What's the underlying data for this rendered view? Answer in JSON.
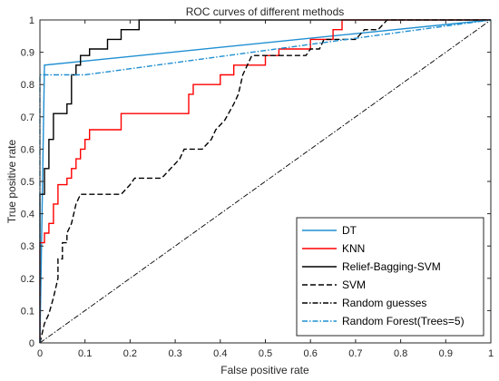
{
  "chart_data": {
    "type": "line",
    "title": "ROC curves of different methods",
    "xlabel": "False positive rate",
    "ylabel": "True positive rate",
    "xlim": [
      0,
      1
    ],
    "ylim": [
      0,
      1
    ],
    "grid": false,
    "legend_position": "bottom-right",
    "xticks": [
      "0",
      "0.1",
      "0.2",
      "0.3",
      "0.4",
      "0.5",
      "0.6",
      "0.7",
      "0.8",
      "0.9",
      "1"
    ],
    "yticks": [
      "0",
      "0.1",
      "0.2",
      "0.3",
      "0.4",
      "0.5",
      "0.6",
      "0.7",
      "0.8",
      "0.9",
      "1"
    ],
    "series": [
      {
        "name": "DT",
        "color": "#1f8fd1",
        "dash": "solid",
        "points": [
          [
            0,
            0
          ],
          [
            0.01,
            0.86
          ],
          [
            1,
            1
          ]
        ]
      },
      {
        "name": "KNN",
        "color": "#ff0000",
        "dash": "solid",
        "points": [
          [
            0,
            0
          ],
          [
            0,
            0.31
          ],
          [
            0.01,
            0.31
          ],
          [
            0.01,
            0.34
          ],
          [
            0.02,
            0.34
          ],
          [
            0.02,
            0.37
          ],
          [
            0.03,
            0.37
          ],
          [
            0.03,
            0.43
          ],
          [
            0.04,
            0.43
          ],
          [
            0.04,
            0.49
          ],
          [
            0.06,
            0.49
          ],
          [
            0.06,
            0.51
          ],
          [
            0.07,
            0.51
          ],
          [
            0.07,
            0.54
          ],
          [
            0.08,
            0.54
          ],
          [
            0.08,
            0.57
          ],
          [
            0.09,
            0.57
          ],
          [
            0.09,
            0.6
          ],
          [
            0.1,
            0.6
          ],
          [
            0.1,
            0.63
          ],
          [
            0.11,
            0.63
          ],
          [
            0.11,
            0.66
          ],
          [
            0.18,
            0.66
          ],
          [
            0.18,
            0.71
          ],
          [
            0.22,
            0.71
          ],
          [
            0.22,
            0.71
          ],
          [
            0.33,
            0.71
          ],
          [
            0.33,
            0.77
          ],
          [
            0.34,
            0.77
          ],
          [
            0.34,
            0.8
          ],
          [
            0.4,
            0.8
          ],
          [
            0.4,
            0.83
          ],
          [
            0.43,
            0.83
          ],
          [
            0.43,
            0.86
          ],
          [
            0.5,
            0.86
          ],
          [
            0.5,
            0.89
          ],
          [
            0.53,
            0.89
          ],
          [
            0.53,
            0.91
          ],
          [
            0.6,
            0.91
          ],
          [
            0.6,
            0.94
          ],
          [
            0.65,
            0.94
          ],
          [
            0.65,
            0.97
          ],
          [
            0.67,
            0.97
          ],
          [
            0.67,
            1.0
          ],
          [
            1,
            1
          ]
        ]
      },
      {
        "name": "Relief-Bagging-SVM",
        "color": "#000000",
        "dash": "solid",
        "points": [
          [
            0,
            0
          ],
          [
            0,
            0.46
          ],
          [
            0.01,
            0.46
          ],
          [
            0.01,
            0.54
          ],
          [
            0.02,
            0.54
          ],
          [
            0.02,
            0.63
          ],
          [
            0.03,
            0.63
          ],
          [
            0.03,
            0.71
          ],
          [
            0.06,
            0.71
          ],
          [
            0.06,
            0.74
          ],
          [
            0.07,
            0.74
          ],
          [
            0.07,
            0.83
          ],
          [
            0.08,
            0.83
          ],
          [
            0.08,
            0.86
          ],
          [
            0.09,
            0.86
          ],
          [
            0.09,
            0.89
          ],
          [
            0.11,
            0.89
          ],
          [
            0.11,
            0.91
          ],
          [
            0.15,
            0.91
          ],
          [
            0.15,
            0.94
          ],
          [
            0.18,
            0.94
          ],
          [
            0.18,
            0.97
          ],
          [
            0.22,
            0.97
          ],
          [
            0.22,
            1.0
          ],
          [
            1,
            1
          ]
        ]
      },
      {
        "name": "SVM",
        "color": "#000000",
        "dash": "dashed",
        "points": [
          [
            0,
            0
          ],
          [
            0.01,
            0.06
          ],
          [
            0.02,
            0.09
          ],
          [
            0.03,
            0.14
          ],
          [
            0.04,
            0.2
          ],
          [
            0.04,
            0.26
          ],
          [
            0.05,
            0.26
          ],
          [
            0.05,
            0.31
          ],
          [
            0.06,
            0.31
          ],
          [
            0.06,
            0.34
          ],
          [
            0.07,
            0.37
          ],
          [
            0.08,
            0.43
          ],
          [
            0.09,
            0.46
          ],
          [
            0.18,
            0.46
          ],
          [
            0.2,
            0.49
          ],
          [
            0.21,
            0.51
          ],
          [
            0.27,
            0.51
          ],
          [
            0.29,
            0.54
          ],
          [
            0.31,
            0.57
          ],
          [
            0.32,
            0.6
          ],
          [
            0.36,
            0.6
          ],
          [
            0.38,
            0.63
          ],
          [
            0.39,
            0.66
          ],
          [
            0.41,
            0.69
          ],
          [
            0.43,
            0.74
          ],
          [
            0.44,
            0.77
          ],
          [
            0.45,
            0.83
          ],
          [
            0.46,
            0.86
          ],
          [
            0.47,
            0.89
          ],
          [
            0.59,
            0.89
          ],
          [
            0.6,
            0.91
          ],
          [
            0.62,
            0.91
          ],
          [
            0.63,
            0.94
          ],
          [
            0.7,
            0.94
          ],
          [
            0.72,
            0.97
          ],
          [
            0.75,
            0.97
          ],
          [
            0.77,
            1.0
          ],
          [
            1,
            1
          ]
        ]
      },
      {
        "name": "Random guesses",
        "color": "#000000",
        "dash": "dashdot",
        "points": [
          [
            0,
            0
          ],
          [
            1,
            1
          ]
        ]
      },
      {
        "name": "Random Forest(Trees=5)",
        "color": "#1f8fd1",
        "dash": "dashdot",
        "points": [
          [
            0,
            0
          ],
          [
            0,
            0.83
          ],
          [
            0.04,
            0.83
          ],
          [
            0.06,
            0.83
          ],
          [
            0.1,
            0.83
          ],
          [
            1,
            1
          ]
        ]
      }
    ]
  }
}
